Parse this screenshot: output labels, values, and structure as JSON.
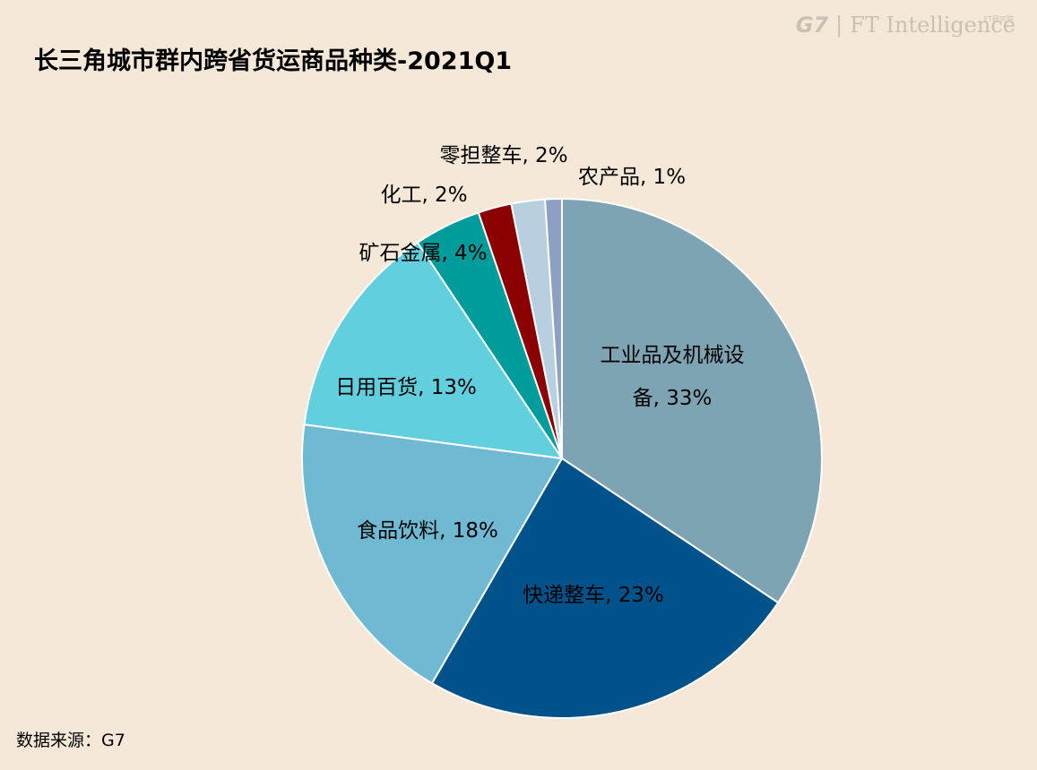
{
  "brand": {
    "g7": "G7",
    "separator": "|",
    "ft": "FT Intelligence",
    "ft_small": "FT研究院"
  },
  "title": "长三角城市群内跨省货运商品种类-2021Q1",
  "source": "数据来源：G7",
  "chart_data": {
    "type": "pie",
    "title": "长三角城市群内跨省货运商品种类-2021Q1",
    "slices": [
      {
        "name": "工业品及机械设备",
        "value": 33,
        "label_lines": [
          "工业品及机械设",
          "备, 33%"
        ],
        "color": "#7ea3b3"
      },
      {
        "name": "快递整车",
        "value": 23,
        "label_lines": [
          "快递整车, 23%"
        ],
        "color": "#00538a"
      },
      {
        "name": "食品饮料",
        "value": 18,
        "label_lines": [
          "食品饮料, 18%"
        ],
        "color": "#6fbad2"
      },
      {
        "name": "日用百货",
        "value": 13,
        "label_lines": [
          "日用百货, 13%"
        ],
        "color": "#62cfdf"
      },
      {
        "name": "矿石金属",
        "value": 4,
        "label_lines": [
          "矿石金属, 4%"
        ],
        "color": "#009c9c"
      },
      {
        "name": "化工",
        "value": 2,
        "label_lines": [
          "化工, 2%"
        ],
        "color": "#8b0000"
      },
      {
        "name": "零担整车",
        "value": 2,
        "label_lines": [
          "零担整车, 2%"
        ],
        "color": "#b8cfdf"
      },
      {
        "name": "农产品",
        "value": 1,
        "label_lines": [
          "农产品, 1%"
        ],
        "color": "#8da0c4"
      }
    ]
  }
}
